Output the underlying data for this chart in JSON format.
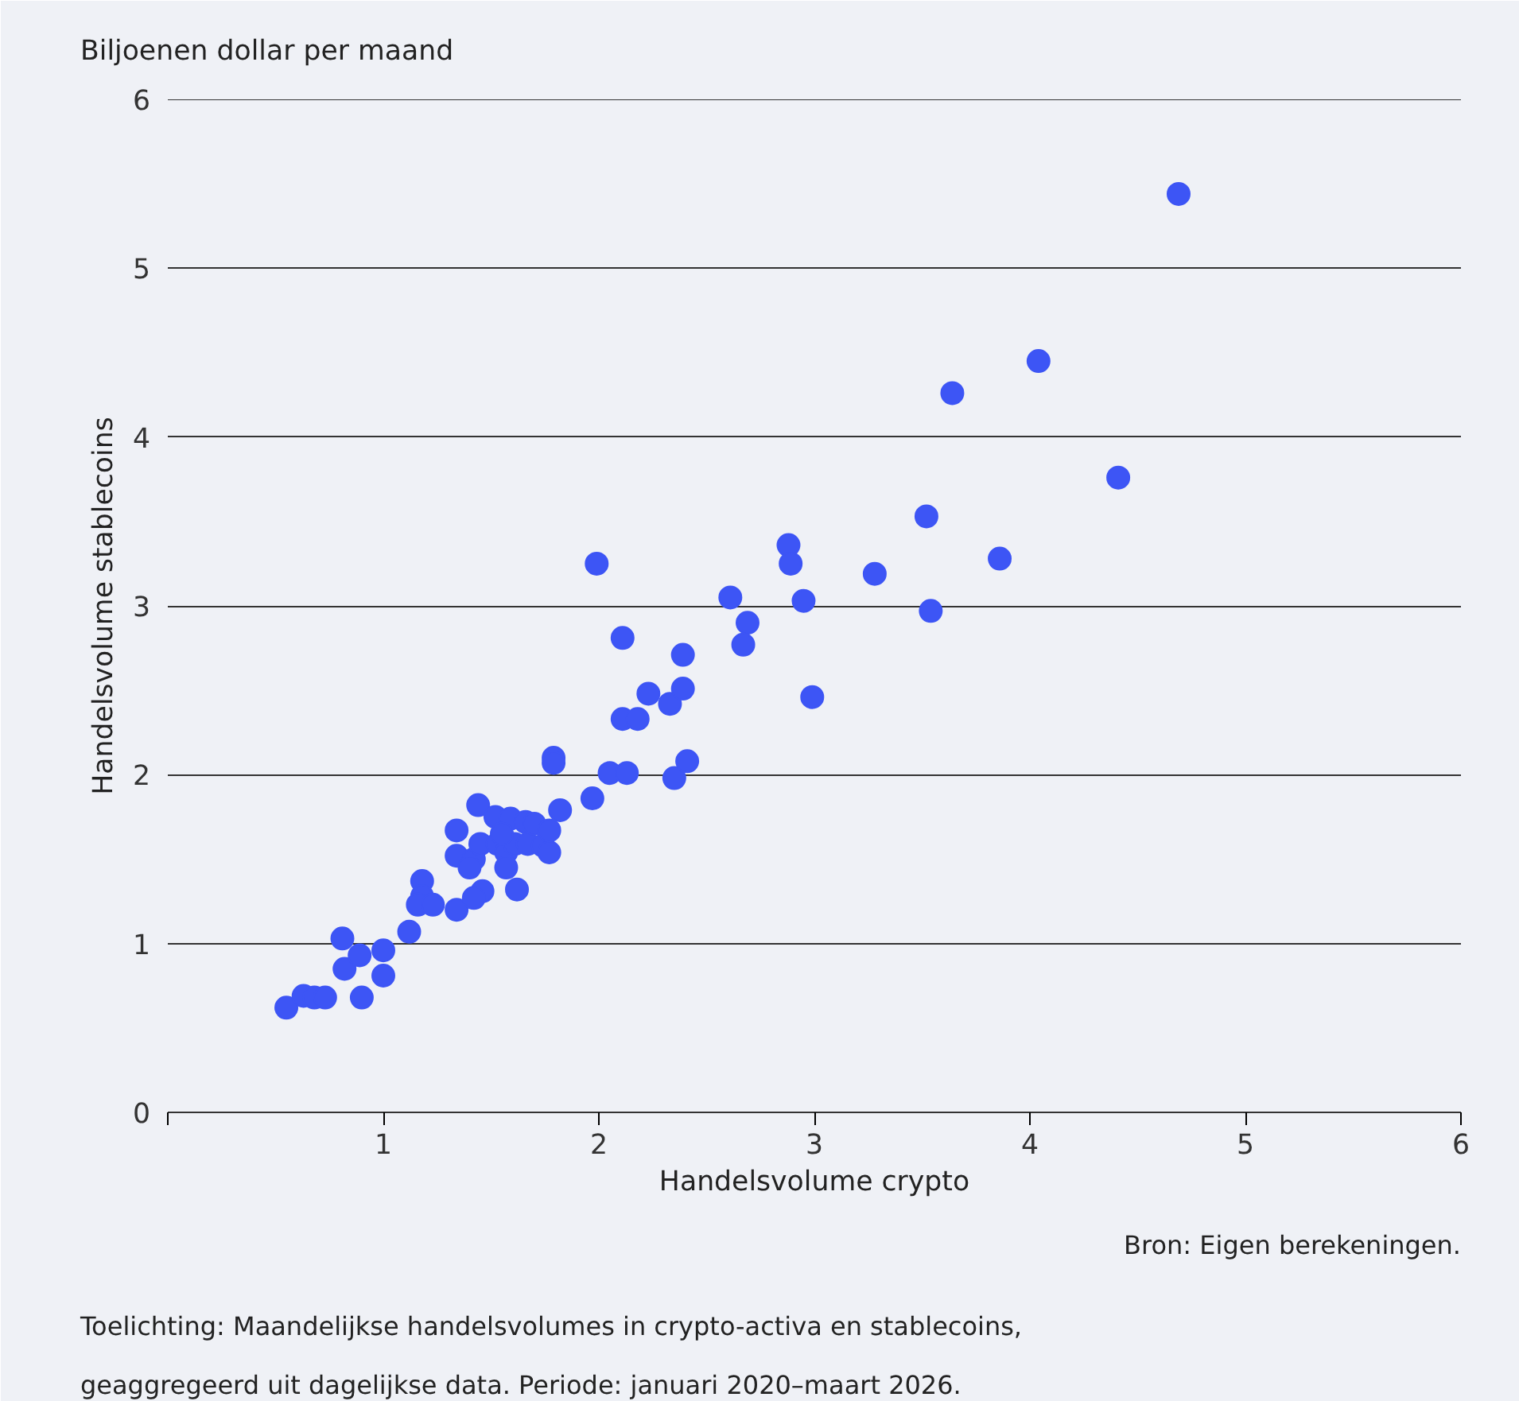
{
  "chart_data": {
    "type": "scatter",
    "subtitle": "Biljoenen dollar per maand",
    "xlabel": "Handelsvolume crypto",
    "ylabel": "Handelsvolume stablecoins",
    "annotations": [
      "Bron: Eigen berekeningen.",
      "Toelichting: Maandelijkse handelsvolumes in crypto-activa en stablecoins,\ngeaggregeerd uit dagelijkse data. Periode: januari 2020–maart 2026."
    ],
    "xlim": [
      0,
      6
    ],
    "ylim": [
      0,
      6
    ],
    "xticks": [
      {
        "value": 0,
        "label": null
      },
      1,
      2,
      3,
      4,
      5,
      6
    ],
    "yticks": [
      0,
      1,
      2,
      3,
      4,
      5,
      6
    ],
    "grid": "y",
    "marker": "circle",
    "series": [
      {
        "color": "#3d55f5",
        "x": [
          0.55,
          0.63,
          0.68,
          0.73,
          0.81,
          0.82,
          0.89,
          0.9,
          1.0,
          1.0,
          1.12,
          1.18,
          1.18,
          1.16,
          1.23,
          1.34,
          1.34,
          1.34,
          1.44,
          1.52,
          1.42,
          1.4,
          1.45,
          1.53,
          1.46,
          1.42,
          1.59,
          1.66,
          1.57,
          1.61,
          1.67,
          1.7,
          1.74,
          1.77,
          1.62,
          1.77,
          1.82,
          1.79,
          1.79,
          1.97,
          2.05,
          2.13,
          1.99,
          2.11,
          2.11,
          2.18,
          2.23,
          2.33,
          2.39,
          2.39,
          2.35,
          2.41,
          2.61,
          2.69,
          2.67,
          2.88,
          2.89,
          2.95,
          2.99,
          3.28,
          3.52,
          3.54,
          3.64,
          3.86,
          4.04,
          4.41,
          4.69,
          1.55,
          1.57
        ],
        "values": [
          0.62,
          0.69,
          0.68,
          0.68,
          1.03,
          0.85,
          0.93,
          0.68,
          0.96,
          0.81,
          1.07,
          1.37,
          1.28,
          1.23,
          1.23,
          1.67,
          1.52,
          1.2,
          1.82,
          1.75,
          1.5,
          1.45,
          1.59,
          1.59,
          1.31,
          1.27,
          1.74,
          1.72,
          1.54,
          1.59,
          1.59,
          1.71,
          1.58,
          1.54,
          1.32,
          1.67,
          1.79,
          2.1,
          2.07,
          1.86,
          2.01,
          2.01,
          3.25,
          2.81,
          2.33,
          2.33,
          2.48,
          2.42,
          2.51,
          2.71,
          1.98,
          2.08,
          3.05,
          2.9,
          2.77,
          3.36,
          3.25,
          3.03,
          2.46,
          3.19,
          3.53,
          2.97,
          4.26,
          3.28,
          4.45,
          3.76,
          5.44,
          1.65,
          1.45
        ]
      }
    ]
  }
}
